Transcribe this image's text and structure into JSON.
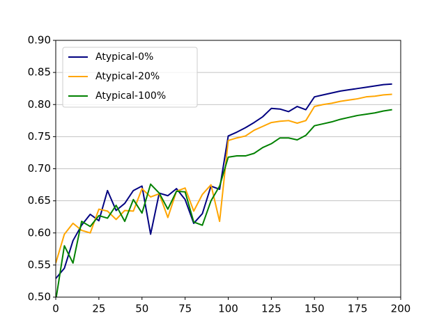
{
  "chart_data": {
    "type": "line",
    "x": [
      0,
      5,
      10,
      15,
      20,
      25,
      30,
      35,
      40,
      45,
      50,
      55,
      60,
      65,
      70,
      75,
      80,
      85,
      90,
      95,
      100,
      105,
      110,
      115,
      120,
      125,
      130,
      135,
      140,
      145,
      150,
      155,
      160,
      165,
      170,
      175,
      180,
      185,
      190,
      195
    ],
    "series": [
      {
        "name": "Atypical-0%",
        "color": "#000080",
        "values": [
          0.529,
          0.545,
          0.588,
          0.612,
          0.629,
          0.619,
          0.666,
          0.635,
          0.646,
          0.666,
          0.673,
          0.598,
          0.662,
          0.658,
          0.669,
          0.652,
          0.615,
          0.63,
          0.673,
          0.668,
          0.751,
          0.757,
          0.764,
          0.772,
          0.781,
          0.794,
          0.793,
          0.789,
          0.797,
          0.792,
          0.812,
          0.815,
          0.818,
          0.821,
          0.823,
          0.825,
          0.827,
          0.829,
          0.831,
          0.832
        ]
      },
      {
        "name": "Atypical-20%",
        "color": "#ffa500",
        "values": [
          0.553,
          0.598,
          0.615,
          0.604,
          0.6,
          0.637,
          0.634,
          0.621,
          0.635,
          0.634,
          0.669,
          0.656,
          0.661,
          0.624,
          0.665,
          0.67,
          0.634,
          0.66,
          0.675,
          0.618,
          0.744,
          0.748,
          0.751,
          0.76,
          0.766,
          0.772,
          0.774,
          0.775,
          0.771,
          0.775,
          0.797,
          0.8,
          0.802,
          0.805,
          0.807,
          0.809,
          0.812,
          0.813,
          0.815,
          0.816
        ]
      },
      {
        "name": "Atypical-100%",
        "color": "#008000",
        "values": [
          0.495,
          0.58,
          0.553,
          0.618,
          0.61,
          0.627,
          0.623,
          0.643,
          0.618,
          0.652,
          0.631,
          0.676,
          0.662,
          0.637,
          0.665,
          0.664,
          0.617,
          0.612,
          0.65,
          0.673,
          0.718,
          0.72,
          0.72,
          0.724,
          0.733,
          0.739,
          0.748,
          0.748,
          0.745,
          0.752,
          0.767,
          0.77,
          0.773,
          0.777,
          0.78,
          0.783,
          0.785,
          0.787,
          0.79,
          0.792
        ]
      }
    ],
    "xlim": [
      0,
      200
    ],
    "xticks": [
      0,
      25,
      50,
      75,
      100,
      125,
      150,
      175,
      200
    ],
    "ylim": [
      0.5,
      0.9
    ],
    "yticks": [
      {
        "value": 0.5,
        "label": "0.50"
      },
      {
        "value": 0.55,
        "label": "0.55"
      },
      {
        "value": 0.6,
        "label": "0.60"
      },
      {
        "value": 0.65,
        "label": "0.65"
      },
      {
        "value": 0.7,
        "label": "0.70"
      },
      {
        "value": 0.75,
        "label": "0.75"
      },
      {
        "value": 0.8,
        "label": "0.80"
      },
      {
        "value": 0.85,
        "label": "0.85"
      },
      {
        "value": 0.9,
        "label": "0.90"
      }
    ],
    "grid": true,
    "legend": "upper-left"
  }
}
